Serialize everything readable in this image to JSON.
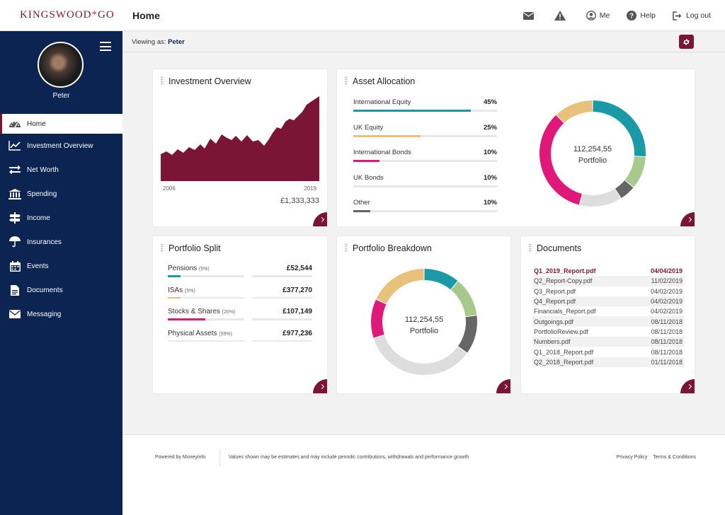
{
  "app": {
    "brand": "KINGSWOOD",
    "brand_mark": "*",
    "brand_suffix": "GO",
    "page_title": "Home"
  },
  "top_actions": [
    {
      "name": "messages",
      "label": "",
      "icon": "envelope-icon"
    },
    {
      "name": "alerts",
      "label": "",
      "icon": "warning-icon"
    },
    {
      "name": "me",
      "label": "Me",
      "icon": "user-icon"
    },
    {
      "name": "help",
      "label": "Help",
      "icon": "help-icon"
    },
    {
      "name": "logout",
      "label": "Log out",
      "icon": "logout-icon"
    }
  ],
  "sidebar": {
    "user_name": "Peter",
    "items": [
      {
        "label": "Home",
        "icon": "dashboard-icon",
        "active": true
      },
      {
        "label": "Investment Overview",
        "icon": "line-chart-icon"
      },
      {
        "label": "Net Worth",
        "icon": "transfer-icon"
      },
      {
        "label": "Spending",
        "icon": "bank-icon"
      },
      {
        "label": "Income",
        "icon": "signpost-icon"
      },
      {
        "label": "Insurances",
        "icon": "umbrella-icon"
      },
      {
        "label": "Events",
        "icon": "calendar-icon"
      },
      {
        "label": "Documents",
        "icon": "document-icon"
      },
      {
        "label": "Messaging",
        "icon": "envelope-icon"
      }
    ]
  },
  "viewing": {
    "prefix": "Viewing as:",
    "name": "Peter"
  },
  "investment_overview": {
    "title": "Investment Overview",
    "start_year": "2006",
    "end_year": "2019",
    "total": "£1,333,333",
    "color": "#7b1535"
  },
  "asset_allocation": {
    "title": "Asset Allocation",
    "items": [
      {
        "label": "International Equity",
        "pct": "45%",
        "value": 82,
        "color": "#1a9aa6"
      },
      {
        "label": "UK Equity",
        "pct": "25%",
        "value": 47,
        "color": "#e8c17a"
      },
      {
        "label": "International Bonds",
        "pct": "10%",
        "value": 18,
        "color": "#e0187a"
      },
      {
        "label": "UK Bonds",
        "pct": "10%",
        "value": 0,
        "color": "#a7c98b"
      },
      {
        "label": "Other",
        "pct": "10%",
        "value": 12,
        "color": "#666666"
      }
    ],
    "center_value": "112,254,55",
    "center_label": "Portfolio",
    "donut": [
      {
        "value": 26,
        "color": "#1a9aa6"
      },
      {
        "value": 10,
        "color": "#a7c98b"
      },
      {
        "value": 5,
        "color": "#666666"
      },
      {
        "value": 13,
        "color": "#dddddd"
      },
      {
        "value": 34,
        "color": "#e0187a"
      },
      {
        "value": 12,
        "color": "#e8c17a"
      }
    ]
  },
  "portfolio_split": {
    "title": "Portfolio Split",
    "items": [
      {
        "label": "Pensions",
        "pct": "(5%)",
        "value": "£52,544",
        "fill": 17,
        "color": "#1a9aa6"
      },
      {
        "label": "ISAs",
        "pct": "(5%)",
        "value": "£377,270",
        "fill": 17,
        "color": "#e8c17a"
      },
      {
        "label": "Stocks & Shares",
        "pct": "(20%)",
        "value": "£107,149",
        "fill": 49,
        "color": "#e0187a"
      },
      {
        "label": "Physical Assets",
        "pct": "(59%)",
        "value": "£977,236",
        "fill": 0,
        "color": "#a7c98b"
      }
    ]
  },
  "portfolio_breakdown": {
    "title": "Portfolio Breakdown",
    "center_value": "112,254,55",
    "center_label": "Portfolio",
    "donut": [
      {
        "value": 11,
        "color": "#1a9aa6"
      },
      {
        "value": 12,
        "color": "#a7c98b"
      },
      {
        "value": 12,
        "color": "#666666"
      },
      {
        "value": 35,
        "color": "#dddddd"
      },
      {
        "value": 12,
        "color": "#e0187a"
      },
      {
        "value": 18,
        "color": "#e8c17a"
      }
    ]
  },
  "documents": {
    "title": "Documents",
    "rows": [
      {
        "name": "Q1_2019_Report.pdf",
        "date": "04/04/2019"
      },
      {
        "name": "Q2_Report-Copy.pdf",
        "date": "11/02/2019"
      },
      {
        "name": "Q3_Report.pdf",
        "date": "04/02/2019"
      },
      {
        "name": "Q4_Report.pdf",
        "date": "04/02/2019"
      },
      {
        "name": "Financials_Report.pdf",
        "date": "04/02/2019"
      },
      {
        "name": "Outgoings.pdf",
        "date": "08/11/2018"
      },
      {
        "name": "PortfolioReview.pdf",
        "date": "08/11/2018"
      },
      {
        "name": "Numbers.pdf",
        "date": "08/11/2018"
      },
      {
        "name": "Q1_2018_Report.pdf",
        "date": "08/11/2018"
      },
      {
        "name": "Q2_2018_Report.pdf",
        "date": "01/11/2018"
      }
    ]
  },
  "footer": {
    "powered": "Powered by Moneyinfo",
    "disclaimer": "Values shown may be estimates and may include periodic contributions, withdrawals and performance growth",
    "privacy": "Privacy Policy",
    "terms": "Terms & Conditions"
  }
}
